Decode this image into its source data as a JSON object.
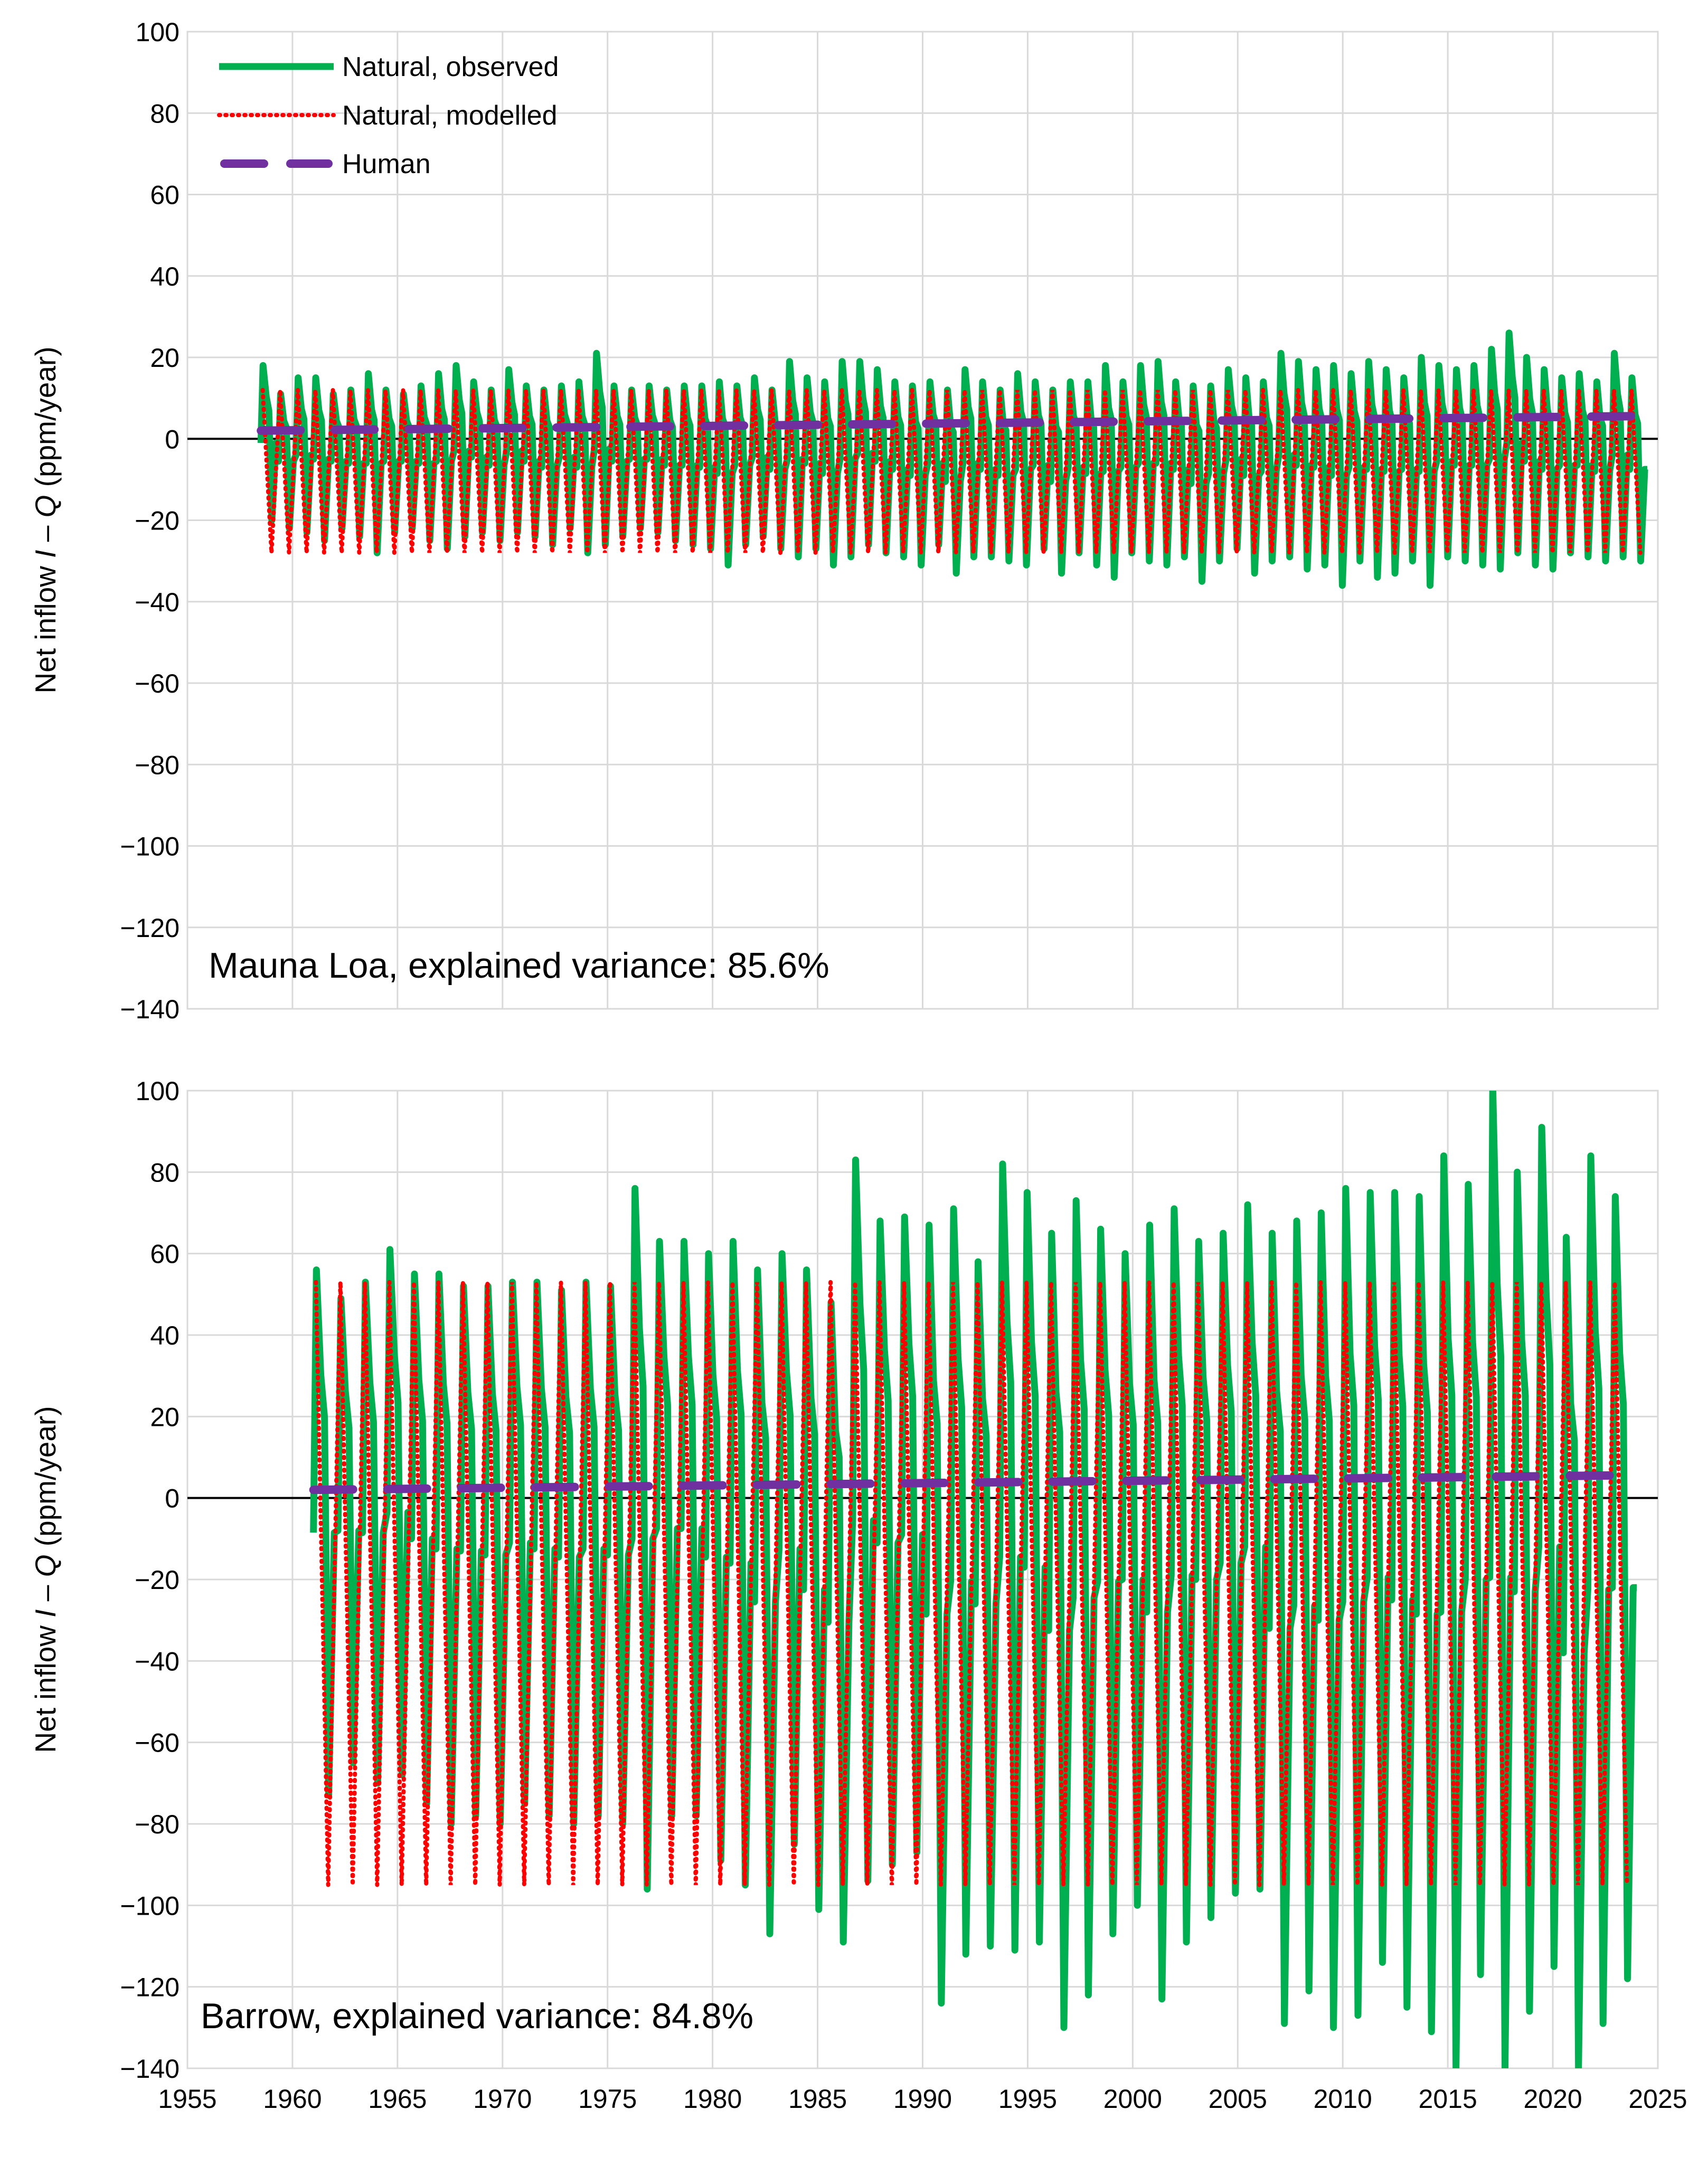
{
  "chart_data": [
    {
      "type": "line",
      "name": "mauna-loa",
      "annotation": "Mauna Loa, explained variance: 85.6%",
      "ylabel_prefix": "Net inflow ",
      "ylabel_italic_1": "I",
      "ylabel_mid": " – ",
      "ylabel_italic_2": "Q",
      "ylabel_suffix": " (ppm/year)",
      "xlim": [
        1955,
        2025
      ],
      "ylim": [
        -140,
        100
      ],
      "xticks": [
        1955,
        1960,
        1965,
        1970,
        1975,
        1980,
        1985,
        1990,
        1995,
        2000,
        2005,
        2010,
        2015,
        2020,
        2025
      ],
      "yticks": [
        100,
        80,
        60,
        40,
        20,
        0,
        -20,
        -40,
        -60,
        -80,
        -100,
        -120,
        -140
      ],
      "ytick_labels": [
        "100",
        "80",
        "60",
        "40",
        "20",
        "0",
        "−20",
        "−40",
        "−60",
        "−80",
        "−100",
        "−120",
        "−140"
      ],
      "show_xtick_labels": false,
      "grid": true,
      "legend_position": "top-left",
      "legend": [
        "Natural, observed",
        "Natural, modelled",
        "Human"
      ],
      "series": [
        {
          "name": "Natural, observed",
          "style": "solid",
          "color": "#00b050",
          "x_start": 1958.5,
          "x_end": 2024.5,
          "peaks": [
            18,
            11,
            15,
            15,
            11,
            12,
            16,
            12,
            11,
            13,
            16,
            18,
            14,
            12,
            17,
            13,
            12,
            13,
            14,
            21,
            13,
            12,
            13,
            12,
            13,
            13,
            14,
            13,
            15,
            12,
            19,
            15,
            14,
            19,
            19,
            17,
            14,
            13,
            14,
            12,
            17,
            14,
            12,
            16,
            14,
            12,
            14,
            14,
            18,
            14,
            18,
            19,
            14,
            13,
            13,
            17,
            15,
            14,
            21,
            19,
            17,
            18,
            16,
            19,
            17,
            15,
            20,
            18,
            17,
            18,
            22,
            26,
            20,
            17,
            15,
            16,
            14,
            21,
            15
          ],
          "troughs": [
            -20,
            -22,
            -23,
            -25,
            -22,
            -24,
            -28,
            -23,
            -22,
            -25,
            -27,
            -24,
            -23,
            -25,
            -23,
            -24,
            -26,
            -22,
            -28,
            -26,
            -24,
            -22,
            -23,
            -25,
            -26,
            -27,
            -31,
            -26,
            -24,
            -27,
            -29,
            -27,
            -31,
            -29,
            -26,
            -28,
            -29,
            -31,
            -26,
            -33,
            -29,
            -29,
            -30,
            -31,
            -27,
            -33,
            -28,
            -31,
            -34,
            -28,
            -30,
            -31,
            -29,
            -35,
            -30,
            -27,
            -33,
            -30,
            -29,
            -32,
            -31,
            -36,
            -30,
            -34,
            -33,
            -30,
            -36,
            -29,
            -30,
            -31,
            -32,
            -28,
            -31,
            -32,
            -28,
            -29,
            -30,
            -29,
            -30
          ]
        },
        {
          "name": "Natural, modelled",
          "style": "dotted",
          "color": "#ff0000",
          "x_start": 1958.5,
          "x_end": 2024.5,
          "max": 12,
          "min": -28
        },
        {
          "name": "Human",
          "style": "dashed",
          "color": "#7030a0",
          "x": [
            1958.5,
            2024.5
          ],
          "values": [
            2,
            5.6
          ]
        }
      ]
    },
    {
      "type": "line",
      "name": "barrow",
      "annotation": "Barrow, explained variance: 84.8%",
      "ylabel_prefix": "Net inflow ",
      "ylabel_italic_1": "I",
      "ylabel_mid": " – ",
      "ylabel_italic_2": "Q",
      "ylabel_suffix": " (ppm/year)",
      "xlim": [
        1955,
        2025
      ],
      "ylim": [
        -140,
        100
      ],
      "xticks": [
        1955,
        1960,
        1965,
        1970,
        1975,
        1980,
        1985,
        1990,
        1995,
        2000,
        2005,
        2010,
        2015,
        2020,
        2025
      ],
      "yticks": [
        100,
        80,
        60,
        40,
        20,
        0,
        -20,
        -40,
        -60,
        -80,
        -100,
        -120,
        -140
      ],
      "ytick_labels": [
        "100",
        "80",
        "60",
        "40",
        "20",
        "0",
        "−20",
        "−40",
        "−60",
        "−80",
        "−100",
        "−120",
        "−140"
      ],
      "show_xtick_labels": true,
      "grid": true,
      "series": [
        {
          "name": "Natural, observed",
          "style": "solid",
          "color": "#00b050",
          "x_start": 1961,
          "x_end": 2024,
          "peaks": [
            56,
            49,
            53,
            61,
            55,
            55,
            52,
            52,
            53,
            53,
            51,
            53,
            52,
            76,
            63,
            63,
            60,
            63,
            56,
            60,
            56,
            48,
            83,
            68,
            69,
            67,
            71,
            58,
            82,
            75,
            65,
            73,
            66,
            60,
            67,
            71,
            63,
            65,
            72,
            65,
            68,
            70,
            76,
            75,
            75,
            74,
            84,
            77,
            101,
            80,
            91,
            64,
            84,
            74
          ],
          "troughs": [
            -73,
            -65,
            -70,
            -68,
            -75,
            -80,
            -78,
            -80,
            -75,
            -78,
            -80,
            -78,
            -80,
            -96,
            -78,
            -78,
            -89,
            -95,
            -107,
            -85,
            -101,
            -109,
            -94,
            -90,
            -87,
            -124,
            -112,
            -110,
            -111,
            -109,
            -130,
            -122,
            -107,
            -100,
            -123,
            -109,
            -103,
            -97,
            -96,
            -129,
            -121,
            -130,
            -127,
            -114,
            -125,
            -131,
            -140,
            -117,
            -140,
            -126,
            -115,
            -140,
            -129,
            -118
          ]
        },
        {
          "name": "Natural, modelled",
          "style": "dotted",
          "color": "#ff0000",
          "x_start": 1961,
          "x_end": 2024,
          "max": 53,
          "min": -95
        },
        {
          "name": "Human",
          "style": "dashed",
          "color": "#7030a0",
          "x": [
            1961,
            2024
          ],
          "values": [
            2,
            5.6
          ]
        }
      ]
    }
  ]
}
